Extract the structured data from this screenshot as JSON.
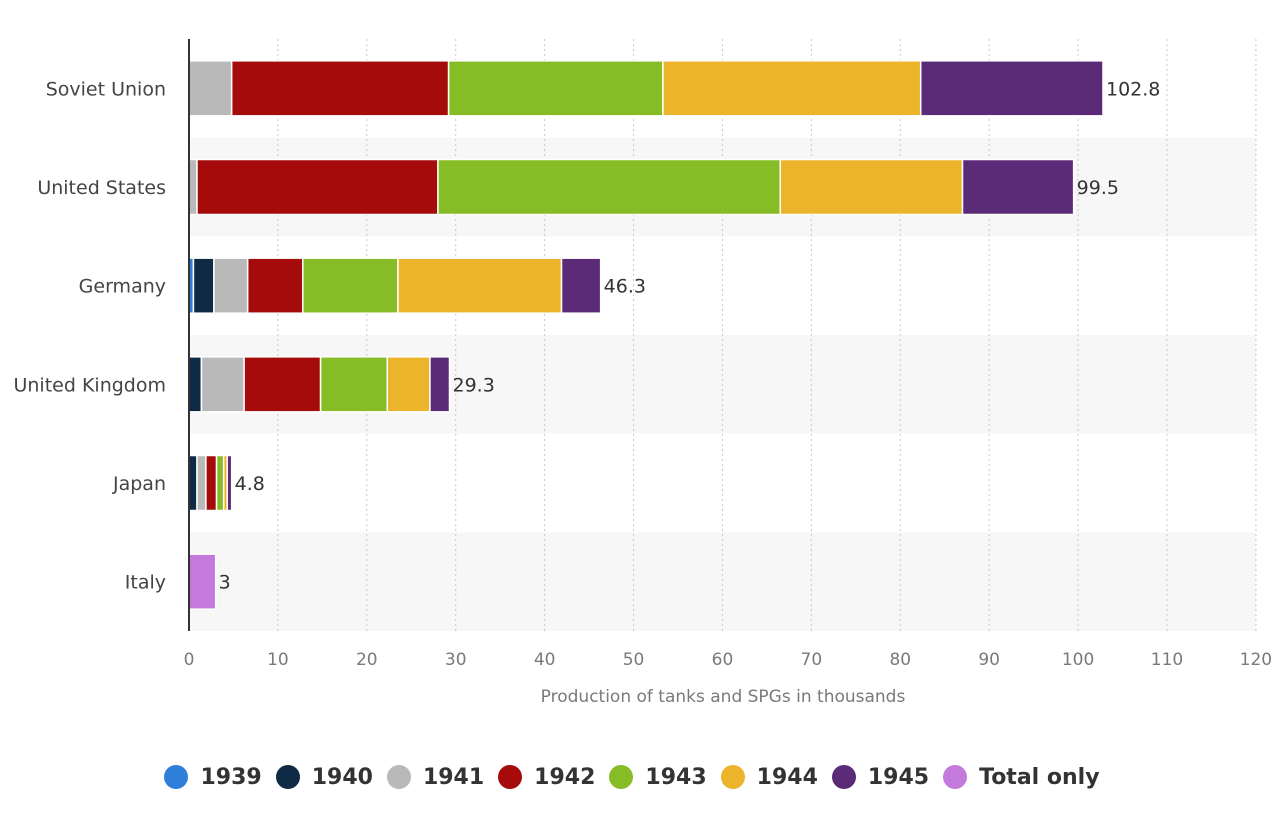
{
  "chart_data": {
    "type": "bar",
    "orientation": "horizontal",
    "stacked": true,
    "categories": [
      "Soviet Union",
      "United States",
      "Germany",
      "United Kingdom",
      "Japan",
      "Italy"
    ],
    "series": [
      {
        "name": "1939",
        "color": "#2f7ed8",
        "values": [
          0,
          0,
          0.5,
          0,
          0,
          0
        ]
      },
      {
        "name": "1940",
        "color": "#0f2a45",
        "values": [
          0,
          0,
          2.3,
          1.4,
          0.9,
          0
        ]
      },
      {
        "name": "1941",
        "color": "#b9b9b9",
        "values": [
          4.8,
          0.9,
          3.8,
          4.8,
          1.0,
          0
        ]
      },
      {
        "name": "1942",
        "color": "#a50b0b",
        "values": [
          24.4,
          27.1,
          6.2,
          8.6,
          1.2,
          0
        ]
      },
      {
        "name": "1943",
        "color": "#86bc25",
        "values": [
          24.1,
          38.5,
          10.7,
          7.5,
          0.8,
          0
        ]
      },
      {
        "name": "1944",
        "color": "#ebb42a",
        "values": [
          29.0,
          20.5,
          18.4,
          4.8,
          0.4,
          0
        ]
      },
      {
        "name": "1945",
        "color": "#5c2b77",
        "values": [
          20.5,
          12.5,
          4.4,
          2.2,
          0.5,
          0
        ]
      },
      {
        "name": "Total only",
        "color": "#c479dd",
        "values": [
          0,
          0,
          0,
          0,
          0,
          3.0
        ]
      }
    ],
    "totals": [
      "102.8",
      "99.5",
      "46.3",
      "29.3",
      "4.8",
      "3"
    ],
    "x_ticks": [
      "0",
      "10",
      "20",
      "30",
      "40",
      "50",
      "60",
      "70",
      "80",
      "90",
      "100",
      "110",
      "120"
    ],
    "xlim": [
      0,
      120
    ],
    "xlabel": "Production of tanks and SPGs in thousands",
    "ylabel": "",
    "title": "",
    "grid": "vertical dotted",
    "legend_position": "bottom-center"
  }
}
